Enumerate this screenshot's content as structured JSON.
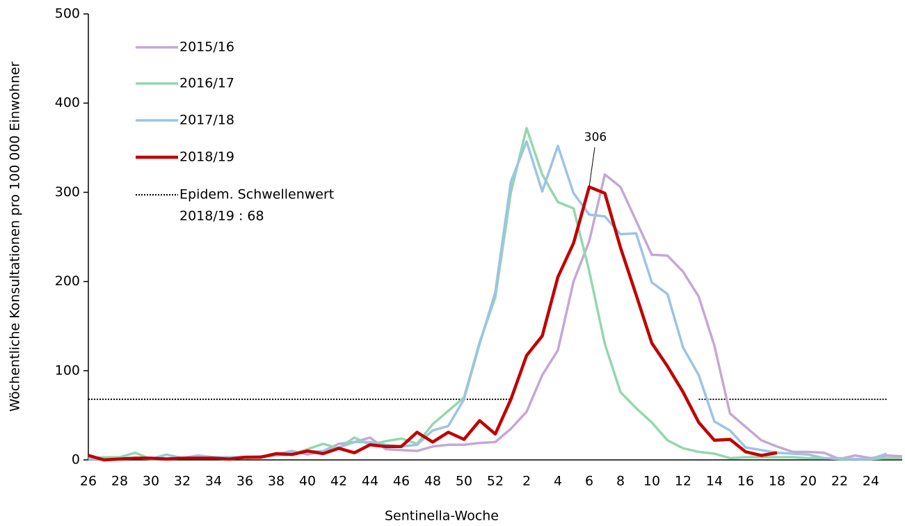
{
  "chart_data": {
    "type": "line",
    "x_label": "Sentinella-Woche",
    "y_label": "Wöchentliche Konsultationen pro 100 000 Einwohner",
    "categories": [
      "26",
      null,
      "28",
      null,
      "30",
      null,
      "32",
      null,
      "34",
      null,
      "36",
      null,
      "38",
      null,
      "40",
      null,
      "42",
      null,
      "44",
      null,
      "46",
      null,
      "48",
      null,
      "50",
      null,
      "52",
      null,
      "2",
      null,
      "4",
      null,
      "6",
      null,
      "8",
      null,
      "10",
      null,
      "12",
      null,
      "14",
      null,
      "16",
      null,
      "18",
      null,
      "20",
      null,
      "22",
      null,
      "24",
      null,
      null
    ],
    "ylim": [
      0,
      500
    ],
    "yticks": [
      0,
      100,
      200,
      300,
      400,
      500
    ],
    "series": [
      {
        "name": "2015/16",
        "color": "#c4a8d4",
        "width": 3.5,
        "values": [
          2,
          2,
          2,
          2,
          2,
          2,
          2,
          2,
          3,
          2,
          2,
          3,
          6,
          10,
          6,
          10,
          18,
          20,
          25,
          12,
          11,
          10,
          15,
          17,
          17,
          19,
          20,
          35,
          54,
          95,
          123,
          200,
          245,
          320,
          306,
          268,
          230,
          229,
          211,
          183,
          128,
          52,
          37,
          22,
          15,
          9,
          9,
          8,
          1,
          5,
          2,
          5,
          4
        ]
      },
      {
        "name": "2016/17",
        "color": "#93d7ae",
        "width": 3.5,
        "values": [
          2,
          3,
          3,
          8,
          1,
          1,
          2,
          2,
          2,
          2,
          2,
          3,
          5,
          6,
          12,
          18,
          13,
          25,
          17,
          21,
          24,
          18,
          40,
          55,
          70,
          132,
          182,
          300,
          372,
          320,
          289,
          282,
          212,
          130,
          76,
          58,
          42,
          22,
          13,
          9,
          7,
          2,
          3,
          3,
          3,
          3,
          2,
          2,
          1,
          1,
          1,
          2,
          2
        ]
      },
      {
        "name": "2017/18",
        "color": "#9cc4e4",
        "width": 3.5,
        "values": [
          1,
          1,
          2,
          2,
          1,
          6,
          2,
          5,
          3,
          3,
          3,
          4,
          5,
          8,
          9,
          10,
          14,
          20,
          20,
          17,
          15,
          17,
          33,
          38,
          68,
          130,
          188,
          312,
          357,
          301,
          352,
          299,
          275,
          273,
          253,
          254,
          199,
          186,
          126,
          95,
          43,
          33,
          14,
          11,
          8,
          7,
          6,
          2,
          2,
          1,
          1,
          7,
          null
        ]
      },
      {
        "name": "2018/19",
        "color": "#c00000",
        "width": 4.5,
        "values": [
          5,
          0,
          1,
          2,
          2,
          1,
          2,
          2,
          2,
          1,
          3,
          3,
          7,
          6,
          10,
          7,
          13,
          8,
          17,
          15,
          15,
          31,
          20,
          31,
          23,
          44,
          29,
          68,
          117,
          139,
          205,
          243,
          306,
          299,
          238,
          185,
          131,
          105,
          76,
          42,
          22,
          23,
          9,
          5,
          8,
          null,
          null,
          null,
          null,
          null,
          null,
          null,
          null
        ]
      },
      {
        "name": [
          "Epidem. Schwellenwert",
          "2018/19 : 68"
        ],
        "color": "#000000",
        "width": 2,
        "dashed": true,
        "values": [
          68,
          68,
          68,
          68,
          68,
          68,
          68,
          68,
          68,
          68,
          68,
          68,
          68,
          68,
          68,
          68,
          68,
          68,
          68,
          68,
          68,
          68,
          68,
          68,
          68,
          68,
          68,
          68,
          null,
          null,
          null,
          null,
          null,
          null,
          null,
          null,
          null,
          null,
          null,
          68,
          68,
          68,
          68,
          68,
          68,
          68,
          68,
          68,
          68,
          68,
          68,
          68,
          null
        ]
      }
    ],
    "annotations": [
      {
        "text": "306",
        "x": "6",
        "series": "2018/19"
      }
    ]
  }
}
